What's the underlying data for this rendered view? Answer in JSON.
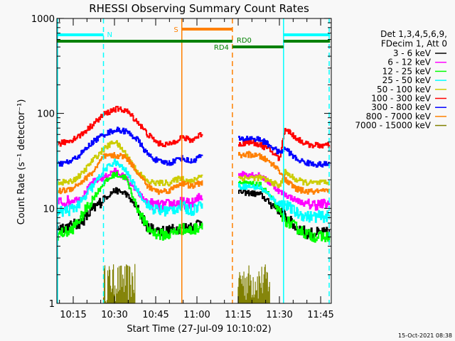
{
  "chart_data": {
    "type": "line",
    "title": "RHESSI Observing Summary Count Rates",
    "xlabel": "Start Time (27-Jul-09 10:10:02)",
    "ylabel": "Count Rate (s⁻¹ detector⁻¹)",
    "x_units": "minutes after 10:00 UT",
    "xlim": [
      9,
      109
    ],
    "ylim": [
      1,
      1000
    ],
    "yscale": "log",
    "y_ticks": [
      {
        "v": 1,
        "label": "1"
      },
      {
        "v": 10,
        "label": "10"
      },
      {
        "v": 100,
        "label": "100"
      },
      {
        "v": 1000,
        "label": "1000"
      }
    ],
    "x_ticks": [
      {
        "v": 15,
        "label": "10:15"
      },
      {
        "v": 30,
        "label": "10:30"
      },
      {
        "v": 45,
        "label": "10:45"
      },
      {
        "v": 60,
        "label": "11:00"
      },
      {
        "v": 75,
        "label": "11:15"
      },
      {
        "v": 90,
        "label": "11:30"
      },
      {
        "v": 105,
        "label": "11:45"
      }
    ],
    "legend": {
      "placement": "right",
      "header": [
        "Det 1,3,4,5,6,9,",
        "FDecim 1, Att 0"
      ]
    },
    "x_segments": [
      [
        9,
        14,
        18,
        22,
        26,
        30,
        34,
        38,
        42,
        46,
        50,
        54,
        58,
        62
      ],
      [
        75,
        79,
        83,
        87,
        90,
        92,
        96,
        100,
        104,
        108.4
      ]
    ],
    "series": [
      {
        "name": "3 - 6 keV",
        "color": "#000000",
        "values": [
          [
            6.3,
            6.5,
            7.2,
            9.7,
            12.6,
            15.5,
            14.4,
            10.2,
            6.3,
            5.8,
            5.8,
            6.3,
            6.3,
            7.5
          ],
          [
            15,
            14.5,
            14,
            11,
            9.7,
            8.2,
            6.3,
            5.5,
            5.5,
            5.5
          ]
        ]
      },
      {
        "name": "6 - 12 keV",
        "color": "#ff00ff",
        "values": [
          [
            11.5,
            12,
            13,
            19,
            21,
            25,
            21,
            15,
            11.5,
            10.6,
            11,
            11.5,
            11,
            13.7
          ],
          [
            23,
            23,
            22,
            18,
            15,
            14,
            12.2,
            11,
            11,
            11
          ]
        ]
      },
      {
        "name": "12 - 25 keV",
        "color": "#00ff00",
        "values": [
          [
            5.3,
            5.8,
            8.2,
            12.6,
            18.3,
            23,
            21,
            10.6,
            6.1,
            5.3,
            5.3,
            6.1,
            5.8,
            6.8
          ],
          [
            18.7,
            18,
            17.5,
            13,
            9,
            7.5,
            6.3,
            5.3,
            5,
            5
          ]
        ]
      },
      {
        "name": "25 - 50 keV",
        "color": "#00ffff",
        "values": [
          [
            9,
            9.7,
            11.5,
            17,
            25,
            31,
            25,
            16,
            10.6,
            9.4,
            9.5,
            10.5,
            9.5,
            11.5
          ],
          [
            17,
            17,
            16.5,
            13,
            11,
            11,
            9,
            8.2,
            8.2,
            8.2
          ]
        ]
      },
      {
        "name": "50 - 100 keV",
        "color": "#cccc00",
        "values": [
          [
            18.7,
            19,
            23,
            32,
            42,
            51,
            38,
            25,
            19,
            18.5,
            18.5,
            21,
            19,
            23
          ],
          [
            21,
            21,
            21,
            19,
            17,
            24,
            20,
            18.5,
            18.5,
            18.5
          ]
        ]
      },
      {
        "name": "100 - 300 keV",
        "color": "#ff0000",
        "values": [
          [
            47,
            52,
            60,
            76,
            97,
            111,
            108,
            84,
            60,
            48,
            47,
            56,
            52,
            62
          ],
          [
            47,
            50,
            47,
            40,
            33,
            70,
            55,
            47,
            46,
            46
          ]
        ]
      },
      {
        "name": "300 - 800 keV",
        "color": "#0000ff",
        "values": [
          [
            29,
            31,
            38,
            50,
            60,
            67,
            65,
            54,
            37,
            31,
            30,
            34,
            31,
            37
          ],
          [
            53,
            55,
            53,
            45,
            38,
            43,
            33,
            30,
            29,
            29
          ]
        ]
      },
      {
        "name": "800 - 7000 keV",
        "color": "#ff8000",
        "values": [
          [
            15,
            16,
            19,
            24,
            35,
            36,
            35,
            25,
            17,
            15,
            15.5,
            18.5,
            17,
            19
          ],
          [
            36,
            37,
            35,
            30,
            25,
            20,
            16,
            15,
            15,
            15
          ]
        ]
      },
      {
        "name": "7000 - 15000 keV",
        "color": "#808000",
        "bursts": [
          {
            "start": 26,
            "end": 37.5,
            "max": 2.6
          },
          {
            "start": 75,
            "end": 86.7,
            "max": 2.6
          }
        ]
      }
    ],
    "vertical_lines": [
      {
        "x": 9.3,
        "color": "#00ffff",
        "style": "solid"
      },
      {
        "x": 26,
        "color": "#00ffff",
        "style": "dashed"
      },
      {
        "x": 54.5,
        "color": "#ff8000",
        "style": "solid"
      },
      {
        "x": 72.9,
        "color": "#ff8000",
        "style": "dashed"
      },
      {
        "x": 91.5,
        "color": "#00ffff",
        "style": "solid"
      },
      {
        "x": 108.1,
        "color": "#00ffff",
        "style": "dashed"
      }
    ],
    "flags": [
      {
        "label": "N",
        "color": "#00ffff",
        "segments": [
          [
            9,
            26
          ],
          [
            91.5,
            108.4
          ]
        ]
      },
      {
        "label": "S",
        "color": "#ff8000",
        "segments": [
          [
            54.5,
            72.9
          ]
        ]
      },
      {
        "label": "RD4",
        "color": "#008000",
        "segments": [
          [
            9,
            72.9
          ],
          [
            91.5,
            108.4
          ]
        ]
      },
      {
        "label": "RD0",
        "color": "#008000",
        "segments": [
          [
            72.9,
            91.5
          ]
        ]
      }
    ]
  },
  "footer": {
    "timestamp": "15-Oct-2021 08:38"
  }
}
